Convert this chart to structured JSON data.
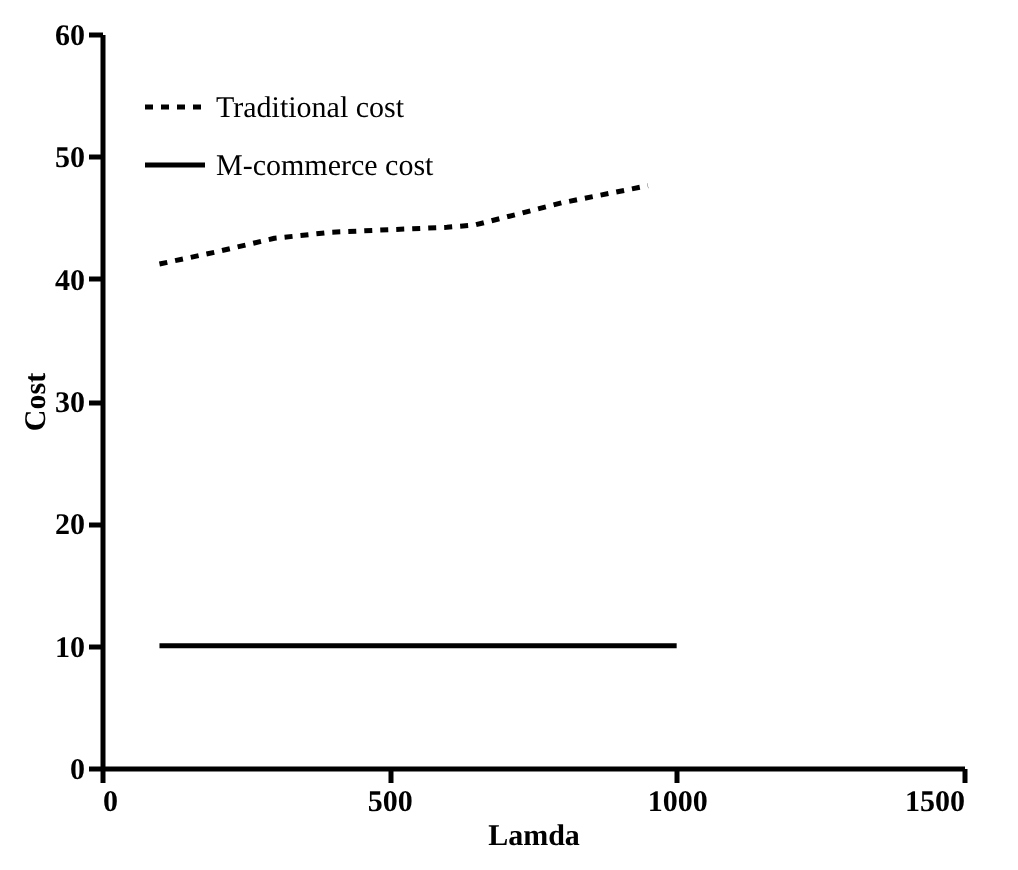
{
  "chart_data": {
    "type": "line",
    "xlabel": "Lamda",
    "ylabel": "Cost",
    "xlim": [
      0,
      1500
    ],
    "xticks": [
      0,
      500,
      1000,
      1500
    ],
    "ylim": [
      0,
      60
    ],
    "yticks": [
      0,
      10,
      20,
      30,
      40,
      50,
      60
    ],
    "grid": false,
    "legend": "top left",
    "marker": "none",
    "series": [
      {
        "name": "Traditional cost",
        "color": "#000000",
        "line_style": "dotted",
        "x": [
          100,
          200,
          300,
          400,
          500,
          600,
          650,
          700,
          800,
          950
        ],
        "values": [
          41.2,
          42.2,
          43.3,
          43.8,
          44,
          44.2,
          44.4,
          45,
          46.2,
          47.6
        ]
      },
      {
        "name": "M-commerce cost",
        "color": "#000000",
        "line_style": "solid",
        "x": [
          100,
          1000
        ],
        "values": [
          10,
          10
        ]
      }
    ]
  }
}
